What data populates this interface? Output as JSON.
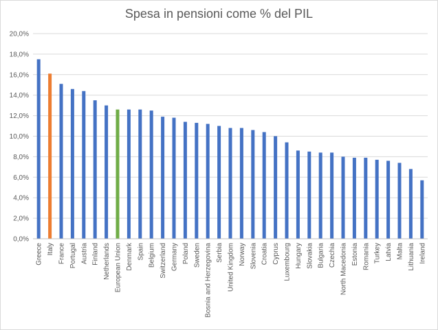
{
  "chart_data": {
    "type": "bar",
    "title": "Spesa in pensioni come % del PIL",
    "xlabel": "",
    "ylabel": "",
    "ylim": [
      0,
      20
    ],
    "ytick_step": 2,
    "ytick_suffix": ",0%",
    "grid": true,
    "legend": "none",
    "categories": [
      "Greece",
      "Italy",
      "France",
      "Portugal",
      "Austria",
      "Finland",
      "Netherlands",
      "European Union",
      "Denmark",
      "Spain",
      "Belgium",
      "Switzerland",
      "Germany",
      "Poland",
      "Sweden",
      "Bosnia and Herzegovina",
      "Serbia",
      "United Kingdom",
      "Norway",
      "Slovenia",
      "Croatia",
      "Cyprus",
      "Luxembourg",
      "Hungary",
      "Slovakia",
      "Bulgaria",
      "Czechia",
      "North Macedonia",
      "Estonia",
      "Romania",
      "Turkey",
      "Latvia",
      "Malta",
      "Lithuania",
      "Ireland"
    ],
    "values": [
      17.5,
      16.1,
      15.1,
      14.6,
      14.4,
      13.5,
      13.0,
      12.6,
      12.6,
      12.6,
      12.5,
      11.9,
      11.8,
      11.4,
      11.3,
      11.2,
      11.0,
      10.8,
      10.8,
      10.6,
      10.4,
      10.0,
      9.4,
      8.6,
      8.5,
      8.4,
      8.4,
      8.0,
      7.9,
      7.9,
      7.7,
      7.6,
      7.4,
      6.8,
      5.7
    ],
    "colors": {
      "default": "#4472c4",
      "Italy": "#ed7d31",
      "European Union": "#70ad47",
      "grid": "#d9d9d9",
      "axis": "#bfbfbf"
    }
  }
}
